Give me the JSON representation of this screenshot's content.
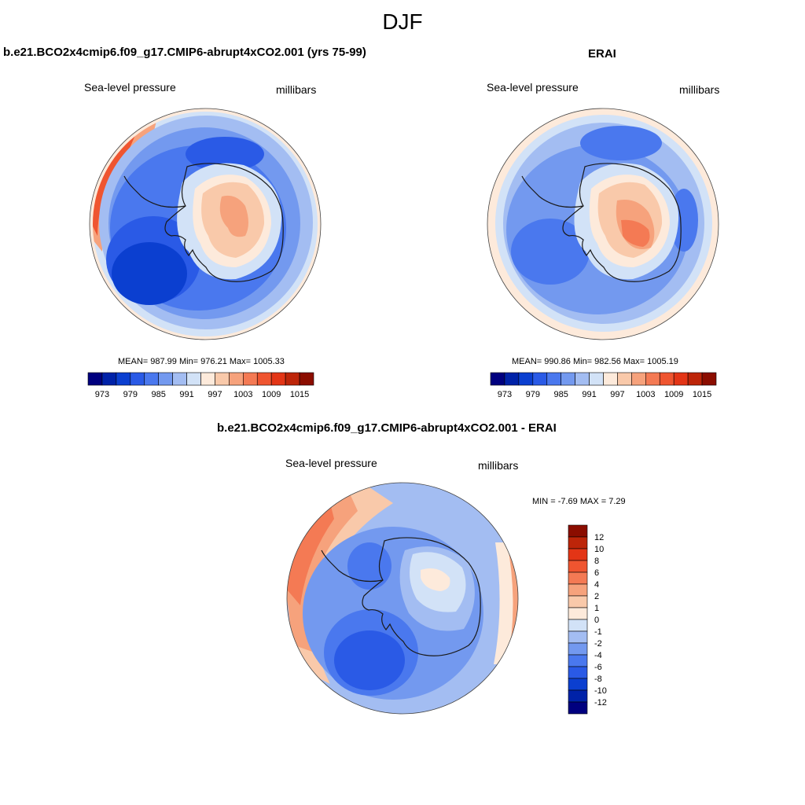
{
  "figure": {
    "season": "DJF",
    "variable_label": "Sea-level pressure",
    "units_label": "millibars"
  },
  "colors": {
    "abs_scale": [
      "#00007f",
      "#0022a8",
      "#0b3fd0",
      "#2a5ae6",
      "#4a78ee",
      "#7399ef",
      "#a3bdf2",
      "#d2e2f7",
      "#fdeadb",
      "#f9c9aa",
      "#f6a27c",
      "#f47a54",
      "#ef5530",
      "#e33516",
      "#bd2509",
      "#8b0d00"
    ],
    "diff_scale": [
      "#00007f",
      "#0022a8",
      "#0b3fd0",
      "#2a5ae6",
      "#4a78ee",
      "#7399ef",
      "#a3bdf2",
      "#d2e2f7",
      "#fdeadb",
      "#f9c9aa",
      "#f6a27c",
      "#f47a54",
      "#ef5530",
      "#e33516",
      "#bd2509",
      "#8b0d00"
    ],
    "coastline": "#1a1a1a"
  },
  "chart_data": [
    {
      "type": "heatmap",
      "title": "b.e21.BCO2x4cmip6.f09_g17.CMIP6-abrupt4xCO2.001 (yrs 75-99)",
      "projection": "south polar stereographic",
      "stats": "MEAN= 987.99  Min= 976.21  Max= 1005.33",
      "mean": 987.99,
      "min": 976.21,
      "max": 1005.33,
      "colorbar_ticks": [
        "973",
        "979",
        "985",
        "991",
        "997",
        "1003",
        "1009",
        "1015"
      ],
      "colorbar_orientation": "horizontal"
    },
    {
      "type": "heatmap",
      "title": "ERAI",
      "projection": "south polar stereographic",
      "stats": "MEAN= 990.86  Min= 982.56  Max= 1005.19",
      "mean": 990.86,
      "min": 982.56,
      "max": 1005.19,
      "colorbar_ticks": [
        "973",
        "979",
        "985",
        "991",
        "997",
        "1003",
        "1009",
        "1015"
      ],
      "colorbar_orientation": "horizontal"
    },
    {
      "type": "heatmap",
      "title": "b.e21.BCO2x4cmip6.f09_g17.CMIP6-abrupt4xCO2.001 - ERAI",
      "projection": "south polar stereographic",
      "stats": "MIN =  -7.69 MAX =   7.29",
      "min": -7.69,
      "max": 7.29,
      "colorbar_ticks": [
        "12",
        "10",
        "8",
        "6",
        "4",
        "2",
        "1",
        "0",
        "-1",
        "-2",
        "-4",
        "-6",
        "-8",
        "-10",
        "-12"
      ],
      "colorbar_orientation": "vertical"
    }
  ]
}
